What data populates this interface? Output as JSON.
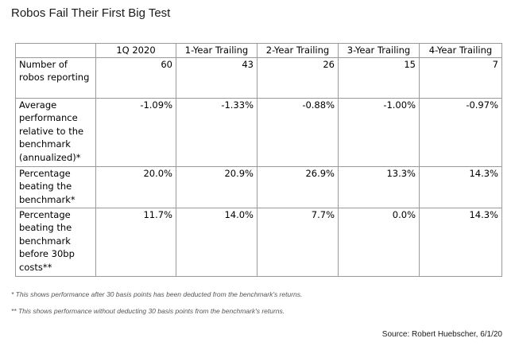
{
  "title": "Robos Fail Their First Big Test",
  "table": {
    "columns": [
      "",
      "1Q 2020",
      "1-Year Trailing",
      "2-Year Trailing",
      "3-Year Trailing",
      "4-Year Trailing"
    ],
    "rows": [
      {
        "label": "Number of robos reporting",
        "values": [
          "60",
          "43",
          "26",
          "15",
          "7"
        ]
      },
      {
        "label": "Average performance relative to the benchmark (annualized)*",
        "values": [
          "-1.09%",
          "-1.33%",
          "-0.88%",
          "-1.00%",
          "-0.97%"
        ]
      },
      {
        "label": "Percentage beating the benchmark*",
        "values": [
          "20.0%",
          "20.9%",
          "26.9%",
          "13.3%",
          "14.3%"
        ]
      },
      {
        "label": "Percentage beating the benchmark before 30bp costs**",
        "values": [
          "11.7%",
          "14.0%",
          "7.7%",
          "0.0%",
          "14.3%"
        ]
      }
    ]
  },
  "footnotes": [
    "* This shows performance after 30 basis points has been deducted from the benchmark's returns.",
    "** This shows performance without deducting 30 basis points from the benchmark's returns."
  ],
  "source": "Source: Robert Huebscher, 6/1/20"
}
